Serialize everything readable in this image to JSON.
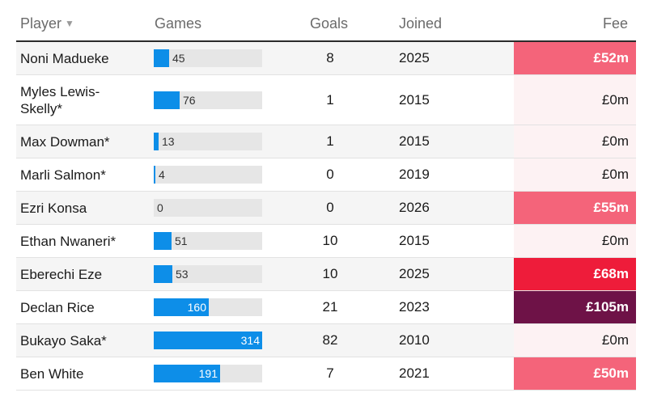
{
  "header": {
    "player": "Player",
    "sort_icon": "▼",
    "games": "Games",
    "goals": "Goals",
    "joined": "Joined",
    "fee": "Fee"
  },
  "games_max": 314,
  "colors": {
    "bar": "#0d8ee8",
    "fee_zero": "#fdf2f3",
    "fee_low": "#f4647a",
    "fee_mid": "#ee1c3a",
    "fee_high": "#6e1247"
  },
  "rows": [
    {
      "player": "Noni Madueke",
      "games": 45,
      "goals": "8",
      "joined": "2025",
      "fee": "£52m",
      "fee_color": "#f4647a"
    },
    {
      "player": "Myles Lewis-Skelly*",
      "games": 76,
      "goals": "1",
      "joined": "2015",
      "fee": "£0m",
      "fee_color": "#fdf2f3"
    },
    {
      "player": "Max Dowman*",
      "games": 13,
      "goals": "1",
      "joined": "2015",
      "fee": "£0m",
      "fee_color": "#fdf2f3"
    },
    {
      "player": "Marli Salmon*",
      "games": 4,
      "goals": "0",
      "joined": "2019",
      "fee": "£0m",
      "fee_color": "#fdf2f3"
    },
    {
      "player": "Ezri Konsa",
      "games": 0,
      "goals": "0",
      "joined": "2026",
      "fee": "£55m",
      "fee_color": "#f4647a"
    },
    {
      "player": "Ethan Nwaneri*",
      "games": 51,
      "goals": "10",
      "joined": "2015",
      "fee": "£0m",
      "fee_color": "#fdf2f3"
    },
    {
      "player": "Eberechi Eze",
      "games": 53,
      "goals": "10",
      "joined": "2025",
      "fee": "£68m",
      "fee_color": "#ee1c3a"
    },
    {
      "player": "Declan Rice",
      "games": 160,
      "goals": "21",
      "joined": "2023",
      "fee": "£105m",
      "fee_color": "#6e1247"
    },
    {
      "player": "Bukayo Saka*",
      "games": 314,
      "goals": "82",
      "joined": "2010",
      "fee": "£0m",
      "fee_color": "#fdf2f3"
    },
    {
      "player": "Ben White",
      "games": 191,
      "goals": "7",
      "joined": "2021",
      "fee": "£50m",
      "fee_color": "#f4647a"
    }
  ]
}
